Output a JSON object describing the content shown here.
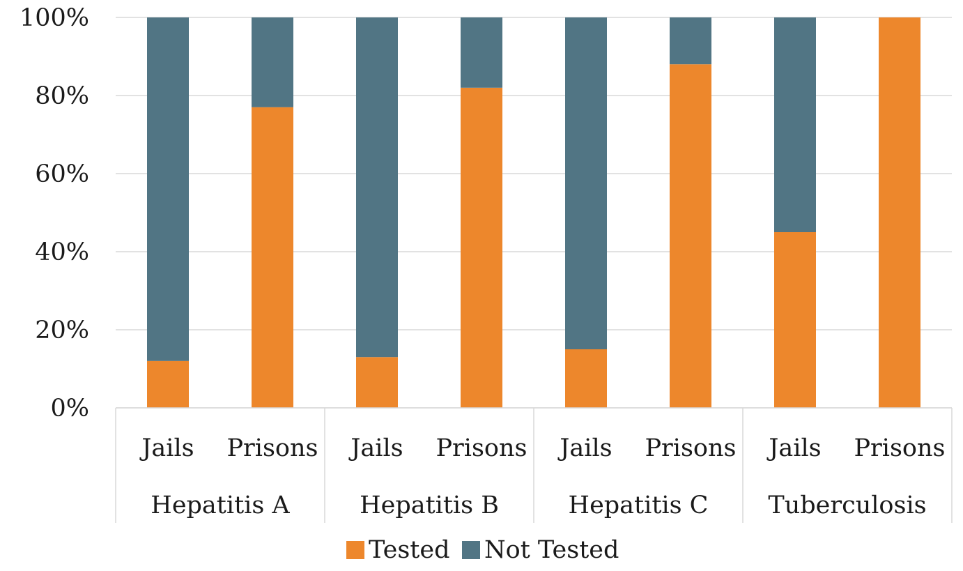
{
  "chart_data": {
    "type": "bar",
    "stacked": true,
    "title": "",
    "xlabel": "",
    "ylabel": "",
    "ylim": [
      0,
      100
    ],
    "y_ticks": [
      "0%",
      "20%",
      "40%",
      "60%",
      "80%",
      "100%"
    ],
    "y_tick_values": [
      0,
      20,
      40,
      60,
      80,
      100
    ],
    "grid": true,
    "legend_position": "bottom",
    "groups": [
      {
        "label": "Hepatitis A",
        "categories": [
          "Jails",
          "Prisons"
        ]
      },
      {
        "label": "Hepatitis B",
        "categories": [
          "Jails",
          "Prisons"
        ]
      },
      {
        "label": "Hepatitis C",
        "categories": [
          "Jails",
          "Prisons"
        ]
      },
      {
        "label": "Tuberculosis",
        "categories": [
          "Jails",
          "Prisons"
        ]
      }
    ],
    "categories": [
      "Jails",
      "Prisons",
      "Jails",
      "Prisons",
      "Jails",
      "Prisons",
      "Jails",
      "Prisons"
    ],
    "series": [
      {
        "name": "Tested",
        "color": "#ED872C",
        "values": [
          12,
          77,
          13,
          82,
          15,
          88,
          45,
          100
        ]
      },
      {
        "name": "Not Tested",
        "color": "#517584",
        "values": [
          88,
          23,
          87,
          18,
          85,
          12,
          55,
          0
        ]
      }
    ]
  }
}
